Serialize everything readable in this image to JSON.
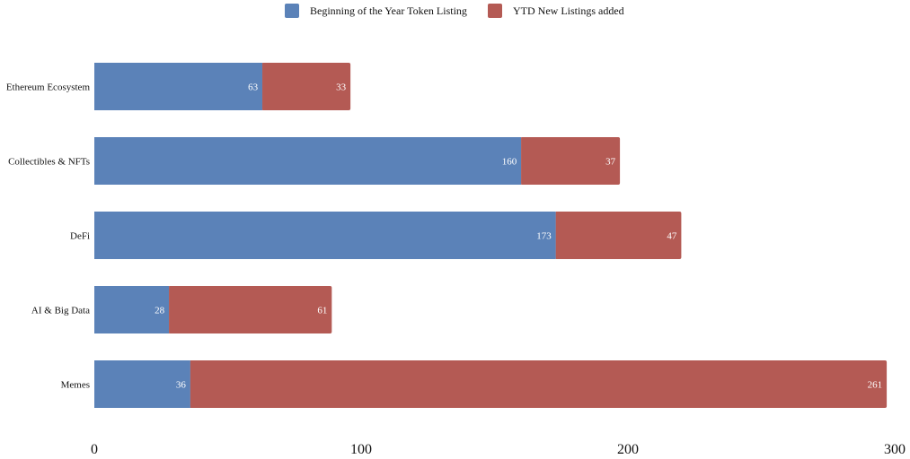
{
  "chart_data": {
    "type": "bar",
    "orientation": "horizontal",
    "stacked": true,
    "title": "",
    "xlabel": "",
    "ylabel": "",
    "categories": [
      "Ethereum Ecosystem",
      "Collectibles & NFTs",
      "DeFi",
      "AI & Big Data",
      "Memes"
    ],
    "series": [
      {
        "name": "Beginning of the Year Token Listing",
        "color": "#5b82b8",
        "values": [
          63,
          160,
          173,
          28,
          36
        ]
      },
      {
        "name": "YTD New Listings added",
        "color": "#b45a54",
        "values": [
          33,
          37,
          47,
          61,
          261
        ]
      }
    ],
    "xlim": [
      0,
      300
    ],
    "xticks": [
      "0",
      "100",
      "200",
      "300"
    ],
    "grid": false,
    "legend_position": "top-center"
  }
}
